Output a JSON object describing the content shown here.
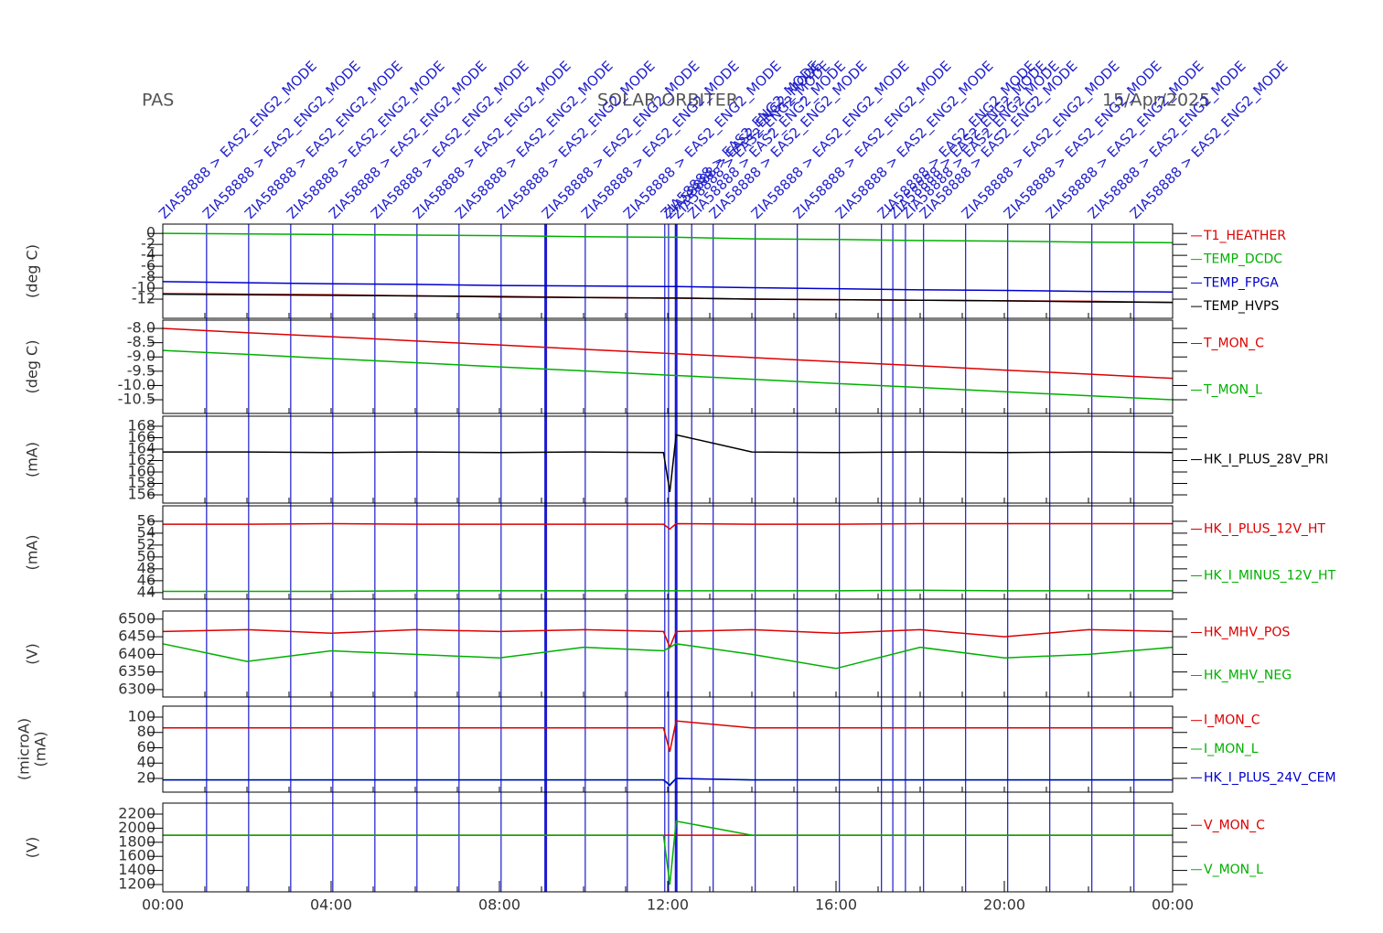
{
  "header": {
    "left": "PAS",
    "center": "SOLAR ORBITER",
    "right": "15/Apr/2025"
  },
  "events": {
    "label": "ZIA58888 > EAS2_ENG2_MODE",
    "times": [
      0,
      1.04,
      2.04,
      3.04,
      4.04,
      5.04,
      6.04,
      7.04,
      8.04,
      9.1,
      10.04,
      11.04,
      11.93,
      12.02,
      12.2,
      12.57,
      13.08,
      14.08,
      15.08,
      16.08,
      17.08,
      17.35,
      17.65,
      18.08,
      19.08,
      20.08,
      21.08,
      22.08,
      23.08
    ]
  },
  "chart_data": [
    {
      "type": "line",
      "ylabel": [
        "(deg C)"
      ],
      "xlim": [
        0,
        24
      ],
      "ylim": [
        -15.5,
        1.7
      ],
      "yticks": [
        0,
        -2,
        -4,
        -6,
        -8,
        -10,
        -12
      ],
      "x": [
        0,
        2,
        4,
        6,
        8,
        10,
        11.9,
        12.05,
        12.2,
        14,
        16,
        18,
        20,
        22,
        24
      ],
      "series": [
        {
          "name": "T1_HEATHER",
          "color": "#dd0000",
          "values": [
            -11,
            -11.1,
            -11.2,
            -11.4,
            -11.5,
            -11.7,
            -11.8,
            -11.8,
            -11.8,
            -12,
            -12.1,
            -12.2,
            -12.3,
            -12.4,
            -12.6
          ]
        },
        {
          "name": "TEMP_DCDC",
          "color": "#00b000",
          "values": [
            0,
            -0.1,
            -0.2,
            -0.3,
            -0.4,
            -0.6,
            -0.7,
            -0.7,
            -0.7,
            -1.0,
            -1.1,
            -1.3,
            -1.4,
            -1.6,
            -1.7
          ]
        },
        {
          "name": "TEMP_FPGA",
          "color": "#0000cc",
          "values": [
            -8.8,
            -9,
            -9.2,
            -9.3,
            -9.5,
            -9.6,
            -9.7,
            -9.7,
            -9.7,
            -9.9,
            -10.1,
            -10.3,
            -10.4,
            -10.6,
            -10.7
          ]
        },
        {
          "name": "TEMP_HVPS",
          "color": "#000000",
          "values": [
            -11.1,
            -11.2,
            -11.3,
            -11.4,
            -11.6,
            -11.7,
            -11.8,
            -11.8,
            -11.8,
            -12,
            -12.1,
            -12.2,
            -12.3,
            -12.5,
            -12.6
          ]
        }
      ]
    },
    {
      "type": "line",
      "ylabel": [
        "(deg C)"
      ],
      "xlim": [
        0,
        24
      ],
      "ylim": [
        -10.98,
        -7.71
      ],
      "yticks": [
        {
          "value": -8,
          "label": "-8.0"
        },
        -8.5,
        {
          "value": -9,
          "label": "-9.0"
        },
        -9.5,
        {
          "value": -10,
          "label": "-10.0"
        },
        -10.5
      ],
      "x": [
        0,
        2,
        4,
        6,
        8,
        10,
        11.9,
        12.05,
        12.2,
        14,
        16,
        18,
        20,
        22,
        24
      ],
      "series": [
        {
          "name": "T_MON_C",
          "color": "#dd0000",
          "values": [
            -8.0,
            -8.15,
            -8.29,
            -8.44,
            -8.58,
            -8.73,
            -8.87,
            -8.88,
            -8.89,
            -9.02,
            -9.17,
            -9.31,
            -9.46,
            -9.6,
            -9.75
          ]
        },
        {
          "name": "T_MON_L",
          "color": "#00b000",
          "values": [
            -8.77,
            -8.91,
            -9.06,
            -9.2,
            -9.35,
            -9.49,
            -9.63,
            -9.64,
            -9.65,
            -9.78,
            -9.93,
            -10.07,
            -10.22,
            -10.36,
            -10.5
          ]
        }
      ]
    },
    {
      "type": "line",
      "ylabel": [
        "(mA)"
      ],
      "xlim": [
        0,
        24
      ],
      "ylim": [
        154.56,
        169.76
      ],
      "yticks": [
        168,
        166,
        164,
        162,
        160,
        158,
        156
      ],
      "x": [
        0,
        2,
        4,
        6,
        8,
        10,
        11.9,
        12.05,
        12.2,
        14,
        16,
        18,
        20,
        22,
        24
      ],
      "series": [
        {
          "name": "HK_I_PLUS_28V_PRI",
          "color": "#000000",
          "values": [
            163.5,
            163.5,
            163.4,
            163.5,
            163.4,
            163.5,
            163.4,
            156.5,
            166.5,
            163.5,
            163.4,
            163.5,
            163.4,
            163.5,
            163.4
          ]
        }
      ]
    },
    {
      "type": "line",
      "ylabel": [
        "(mA)"
      ],
      "xlim": [
        0,
        24
      ],
      "ylim": [
        42.9,
        58.6
      ],
      "yticks": [
        56,
        54,
        52,
        50,
        48,
        46,
        44
      ],
      "x": [
        0,
        2,
        4,
        6,
        8,
        10,
        11.9,
        12.05,
        12.2,
        14,
        16,
        18,
        20,
        22,
        24
      ],
      "series": [
        {
          "name": "HK_I_PLUS_12V_HT",
          "color": "#dd0000",
          "values": [
            55.5,
            55.5,
            55.6,
            55.5,
            55.5,
            55.5,
            55.5,
            54.7,
            55.6,
            55.5,
            55.5,
            55.6,
            55.6,
            55.6,
            55.6
          ]
        },
        {
          "name": "HK_I_MINUS_12V_HT",
          "color": "#00b000",
          "values": [
            44.2,
            44.2,
            44.2,
            44.3,
            44.3,
            44.3,
            44.3,
            44.3,
            44.3,
            44.3,
            44.3,
            44.4,
            44.3,
            44.3,
            44.3
          ]
        }
      ]
    },
    {
      "type": "line",
      "ylabel": [
        "(V)"
      ],
      "xlim": [
        0,
        24
      ],
      "ylim": [
        6279,
        6523
      ],
      "yticks": [
        6500,
        6450,
        6400,
        6350,
        6300
      ],
      "x": [
        0,
        2,
        4,
        6,
        8,
        10,
        11.9,
        12.05,
        12.2,
        14,
        16,
        18,
        20,
        22,
        24
      ],
      "series": [
        {
          "name": "HK_MHV_POS",
          "color": "#dd0000",
          "values": [
            6465,
            6470,
            6460,
            6470,
            6465,
            6470,
            6465,
            6420,
            6465,
            6470,
            6460,
            6470,
            6450,
            6470,
            6465
          ]
        },
        {
          "name": "HK_MHV_NEG",
          "color": "#00b000",
          "values": [
            6430,
            6380,
            6410,
            6400,
            6390,
            6420,
            6410,
            6420,
            6430,
            6400,
            6360,
            6420,
            6390,
            6400,
            6420
          ]
        }
      ]
    },
    {
      "type": "line",
      "ylabel": [
        "(microA)",
        "(mA)"
      ],
      "xlim": [
        0,
        24
      ],
      "ylim": [
        2.1,
        114.3
      ],
      "yticks": [
        100,
        80,
        60,
        40,
        20
      ],
      "x": [
        0,
        2,
        4,
        6,
        8,
        10,
        11.9,
        12.05,
        12.2,
        14,
        16,
        18,
        20,
        22,
        24
      ],
      "series": [
        {
          "name": "I_MON_C",
          "color": "#dd0000",
          "values": [
            86,
            86,
            86,
            86,
            86,
            86,
            86,
            55,
            95,
            86,
            86,
            86,
            86,
            86,
            86
          ]
        },
        {
          "name": "I_MON_L",
          "color": "#00b000",
          "values": [
            18,
            18,
            18,
            18,
            18,
            18,
            18,
            12,
            20,
            18,
            18,
            18,
            18,
            18,
            18
          ]
        },
        {
          "name": "HK_I_PLUS_24V_CEM",
          "color": "#0000cc",
          "values": [
            18,
            18,
            18,
            18,
            18,
            18,
            18,
            11,
            20,
            18,
            18,
            18,
            18,
            18,
            18
          ]
        }
      ]
    },
    {
      "type": "line",
      "ylabel": [
        "(V)"
      ],
      "xlim": [
        0,
        24
      ],
      "ylim": [
        1096,
        2356
      ],
      "yticks": [
        2200,
        2000,
        1800,
        1600,
        1400,
        1200
      ],
      "xticks": [
        {
          "value": 0,
          "label": "00:00"
        },
        {
          "value": 4,
          "label": "04:00"
        },
        {
          "value": 8,
          "label": "08:00"
        },
        {
          "value": 12,
          "label": "12:00"
        },
        {
          "value": 16,
          "label": "16:00"
        },
        {
          "value": 20,
          "label": "20:00"
        },
        {
          "value": 24,
          "label": "00:00"
        }
      ],
      "x": [
        0,
        2,
        4,
        6,
        8,
        10,
        11.9,
        12.05,
        12.2,
        14,
        16,
        18,
        20,
        22,
        24
      ],
      "series": [
        {
          "name": "V_MON_C",
          "color": "#dd0000",
          "values": [
            1900,
            1900,
            1900,
            1900,
            1900,
            1900,
            1900,
            1900,
            1900,
            1900,
            1900,
            1900,
            1900,
            1900,
            1900
          ]
        },
        {
          "name": "V_MON_L",
          "color": "#00b000",
          "values": [
            1900,
            1900,
            1900,
            1900,
            1900,
            1900,
            1900,
            1200,
            2100,
            1900,
            1900,
            1900,
            1900,
            1900,
            1900
          ]
        }
      ]
    }
  ]
}
